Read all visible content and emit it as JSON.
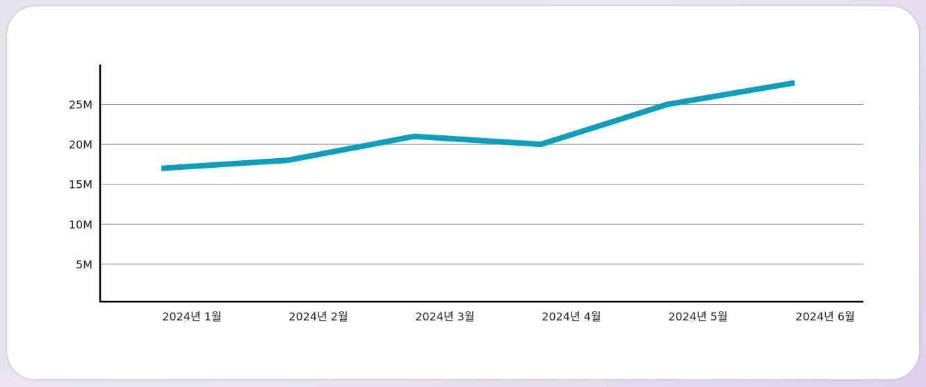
{
  "chart_data": {
    "type": "line",
    "categories": [
      "2024년 1월",
      "2024년 2월",
      "2024년 3월",
      "2024년 4월",
      "2024년 5월",
      "2024년 6월"
    ],
    "values": [
      17000000,
      18000000,
      21000000,
      20000000,
      25000000,
      27700000
    ],
    "y_ticks": [
      {
        "value": 5000000,
        "label": "5M"
      },
      {
        "value": 10000000,
        "label": "10M"
      },
      {
        "value": 15000000,
        "label": "15M"
      },
      {
        "value": 20000000,
        "label": "20M"
      },
      {
        "value": 25000000,
        "label": "25M"
      }
    ],
    "ylim": [
      0,
      30000000
    ],
    "grid": true,
    "line_color": "#0aa0bd",
    "title": "",
    "xlabel": "",
    "ylabel": ""
  }
}
